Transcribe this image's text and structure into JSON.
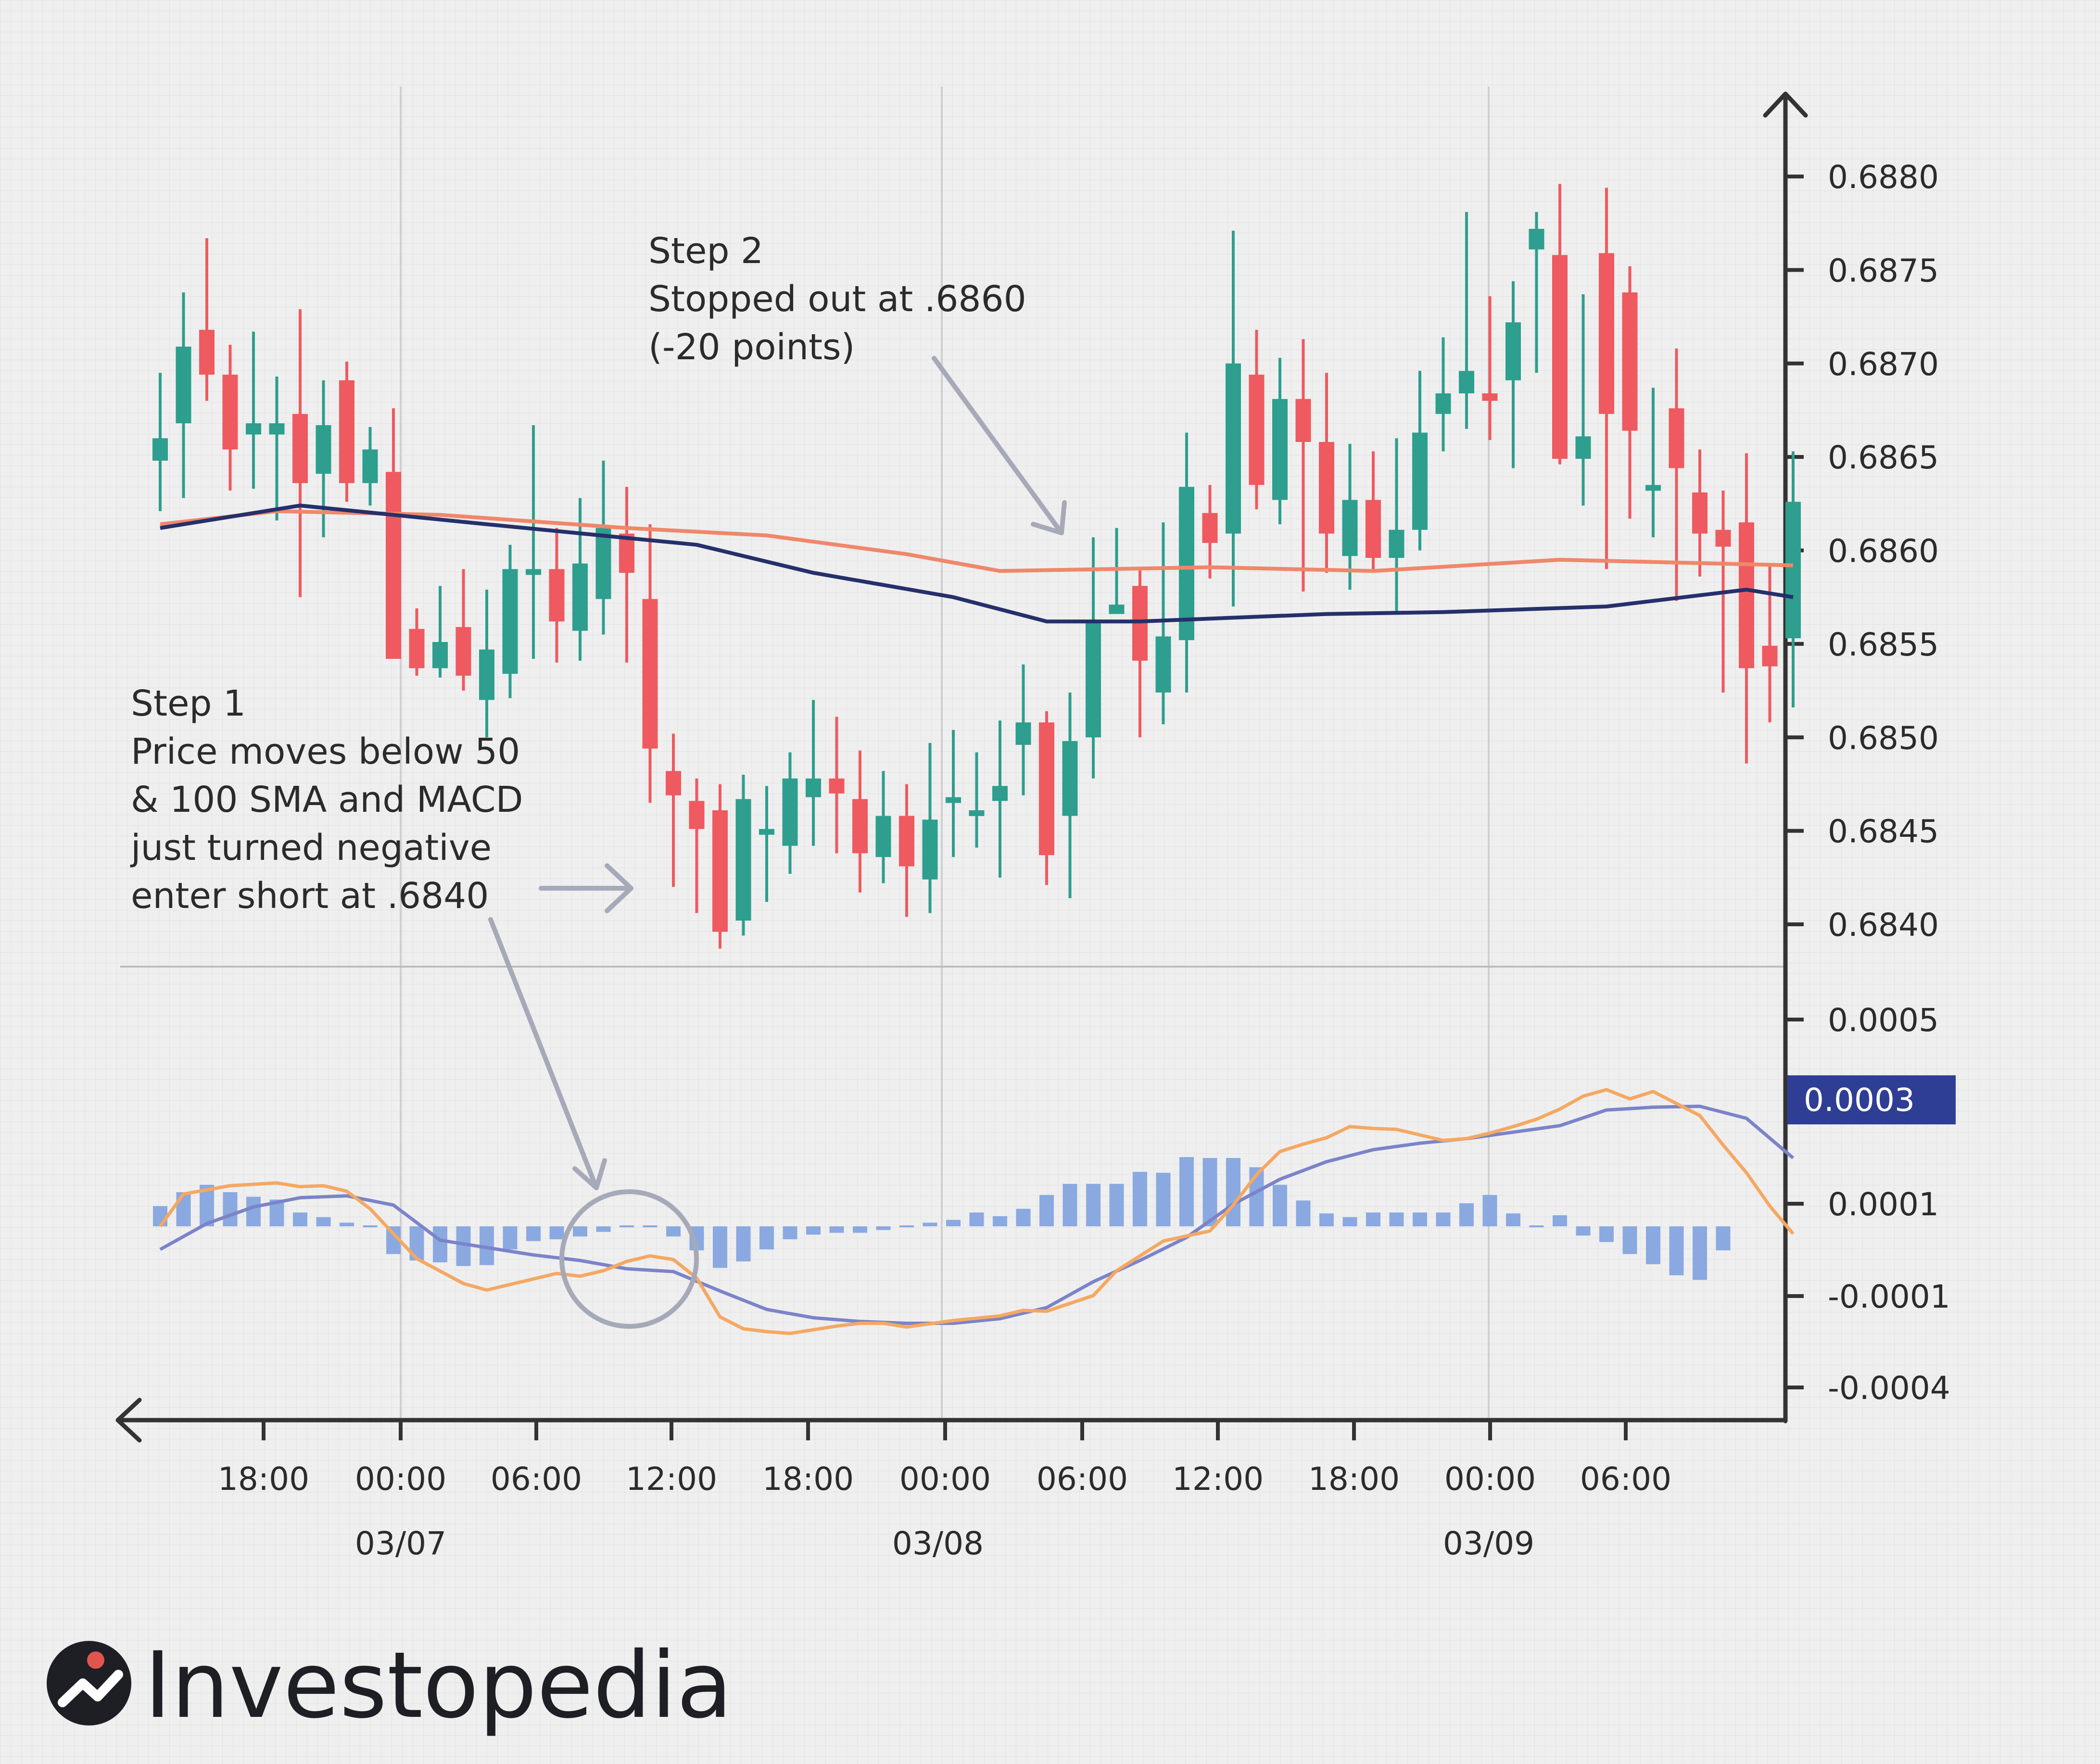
{
  "chart_data": {
    "type": "candlestick",
    "colors": {
      "up": "#2e9e8e",
      "down": "#ee5a5f",
      "sma50": "#f0876a",
      "sma100": "#25306b",
      "macd_line": "#f5a862",
      "signal_line": "#7b83c9",
      "histogram": "#8aa9e0",
      "badge": "#2f3e95",
      "annotation_arrow": "#a6a9b8",
      "axis": "#333333"
    },
    "x_axis": {
      "tick_labels": [
        "18:00",
        "00:00",
        "06:00",
        "12:00",
        "18:00",
        "00:00",
        "06:00",
        "12:00",
        "18:00",
        "00:00",
        "06:00"
      ],
      "date_labels": [
        "03/07",
        "03/08",
        "03/09"
      ]
    },
    "price_panel": {
      "y_ticks": [
        "0.6880",
        "0.6875",
        "0.6870",
        "0.6865",
        "0.6860",
        "0.6855",
        "0.6850",
        "0.6845",
        "0.6840"
      ],
      "ylim": [
        0.68375,
        0.68885
      ],
      "candles": [
        {
          "o": 0.68648,
          "h": 0.68695,
          "l": 0.68621,
          "c": 0.6866
        },
        {
          "o": 0.68668,
          "h": 0.68738,
          "l": 0.68628,
          "c": 0.68709
        },
        {
          "o": 0.68718,
          "h": 0.68767,
          "l": 0.6868,
          "c": 0.68694
        },
        {
          "o": 0.68694,
          "h": 0.6871,
          "l": 0.68632,
          "c": 0.68654
        },
        {
          "o": 0.68662,
          "h": 0.68717,
          "l": 0.68633,
          "c": 0.68668
        },
        {
          "o": 0.68662,
          "h": 0.68693,
          "l": 0.68616,
          "c": 0.68668
        },
        {
          "o": 0.68673,
          "h": 0.68729,
          "l": 0.68575,
          "c": 0.68636
        },
        {
          "o": 0.68641,
          "h": 0.68691,
          "l": 0.68607,
          "c": 0.68667
        },
        {
          "o": 0.68691,
          "h": 0.68701,
          "l": 0.68626,
          "c": 0.68636
        },
        {
          "o": 0.68636,
          "h": 0.68666,
          "l": 0.68624,
          "c": 0.68654
        },
        {
          "o": 0.68642,
          "h": 0.68676,
          "l": 0.68545,
          "c": 0.68542
        },
        {
          "o": 0.68558,
          "h": 0.68569,
          "l": 0.68533,
          "c": 0.68537
        },
        {
          "o": 0.68537,
          "h": 0.68581,
          "l": 0.68532,
          "c": 0.68551
        },
        {
          "o": 0.68559,
          "h": 0.6859,
          "l": 0.68525,
          "c": 0.68533
        },
        {
          "o": 0.6852,
          "h": 0.68579,
          "l": 0.685,
          "c": 0.68547
        },
        {
          "o": 0.68534,
          "h": 0.68603,
          "l": 0.68521,
          "c": 0.6859
        },
        {
          "o": 0.6859,
          "h": 0.68667,
          "l": 0.68542,
          "c": 0.6859
        },
        {
          "o": 0.6859,
          "h": 0.68612,
          "l": 0.6854,
          "c": 0.68562
        },
        {
          "o": 0.68557,
          "h": 0.68628,
          "l": 0.68541,
          "c": 0.68593
        },
        {
          "o": 0.68574,
          "h": 0.68648,
          "l": 0.68555,
          "c": 0.68612
        },
        {
          "o": 0.68609,
          "h": 0.68634,
          "l": 0.6854,
          "c": 0.68588
        },
        {
          "o": 0.68574,
          "h": 0.68614,
          "l": 0.68465,
          "c": 0.68494
        },
        {
          "o": 0.68482,
          "h": 0.68502,
          "l": 0.6842,
          "c": 0.68469
        },
        {
          "o": 0.68466,
          "h": 0.68478,
          "l": 0.68406,
          "c": 0.68451
        },
        {
          "o": 0.68461,
          "h": 0.68475,
          "l": 0.68387,
          "c": 0.68396
        },
        {
          "o": 0.68402,
          "h": 0.6848,
          "l": 0.68394,
          "c": 0.68467
        },
        {
          "o": 0.68451,
          "h": 0.68474,
          "l": 0.68412,
          "c": 0.68451
        },
        {
          "o": 0.68442,
          "h": 0.68492,
          "l": 0.68427,
          "c": 0.68478
        },
        {
          "o": 0.68468,
          "h": 0.6852,
          "l": 0.68442,
          "c": 0.68478
        },
        {
          "o": 0.68478,
          "h": 0.68511,
          "l": 0.68438,
          "c": 0.6847
        },
        {
          "o": 0.68467,
          "h": 0.68493,
          "l": 0.68417,
          "c": 0.68438
        },
        {
          "o": 0.68436,
          "h": 0.68482,
          "l": 0.68422,
          "c": 0.68458
        },
        {
          "o": 0.68458,
          "h": 0.68475,
          "l": 0.68404,
          "c": 0.68431
        },
        {
          "o": 0.68424,
          "h": 0.68497,
          "l": 0.68406,
          "c": 0.68456
        },
        {
          "o": 0.68468,
          "h": 0.68504,
          "l": 0.68436,
          "c": 0.68468
        },
        {
          "o": 0.68461,
          "h": 0.68492,
          "l": 0.68441,
          "c": 0.68461
        },
        {
          "o": 0.68466,
          "h": 0.68509,
          "l": 0.68425,
          "c": 0.68474
        },
        {
          "o": 0.68496,
          "h": 0.68539,
          "l": 0.68469,
          "c": 0.68508
        },
        {
          "o": 0.68508,
          "h": 0.68514,
          "l": 0.68421,
          "c": 0.68437
        },
        {
          "o": 0.68458,
          "h": 0.68524,
          "l": 0.68414,
          "c": 0.68498
        },
        {
          "o": 0.685,
          "h": 0.68607,
          "l": 0.68478,
          "c": 0.68561
        },
        {
          "o": 0.68566,
          "h": 0.68612,
          "l": 0.68568,
          "c": 0.68571
        },
        {
          "o": 0.68581,
          "h": 0.6859,
          "l": 0.685,
          "c": 0.68541
        },
        {
          "o": 0.68524,
          "h": 0.68615,
          "l": 0.68507,
          "c": 0.68554
        },
        {
          "o": 0.68552,
          "h": 0.68663,
          "l": 0.68524,
          "c": 0.68634
        },
        {
          "o": 0.6862,
          "h": 0.68635,
          "l": 0.68585,
          "c": 0.68604
        },
        {
          "o": 0.68609,
          "h": 0.68771,
          "l": 0.6857,
          "c": 0.687
        },
        {
          "o": 0.68694,
          "h": 0.68718,
          "l": 0.68622,
          "c": 0.68635
        },
        {
          "o": 0.68627,
          "h": 0.68703,
          "l": 0.68614,
          "c": 0.68681
        },
        {
          "o": 0.68681,
          "h": 0.68713,
          "l": 0.68578,
          "c": 0.68658
        },
        {
          "o": 0.68658,
          "h": 0.68695,
          "l": 0.68588,
          "c": 0.68609
        },
        {
          "o": 0.68597,
          "h": 0.68657,
          "l": 0.68579,
          "c": 0.68627
        },
        {
          "o": 0.68627,
          "h": 0.68653,
          "l": 0.68588,
          "c": 0.68596
        },
        {
          "o": 0.68596,
          "h": 0.6866,
          "l": 0.68566,
          "c": 0.68611
        },
        {
          "o": 0.68611,
          "h": 0.68696,
          "l": 0.686,
          "c": 0.68663
        },
        {
          "o": 0.68673,
          "h": 0.68714,
          "l": 0.68653,
          "c": 0.68684
        },
        {
          "o": 0.68684,
          "h": 0.68781,
          "l": 0.68665,
          "c": 0.68696
        },
        {
          "o": 0.68684,
          "h": 0.68736,
          "l": 0.68659,
          "c": 0.6868
        },
        {
          "o": 0.68691,
          "h": 0.68744,
          "l": 0.68644,
          "c": 0.68722
        },
        {
          "o": 0.68761,
          "h": 0.68781,
          "l": 0.68695,
          "c": 0.68772
        },
        {
          "o": 0.68758,
          "h": 0.68796,
          "l": 0.68646,
          "c": 0.68649
        },
        {
          "o": 0.68649,
          "h": 0.68737,
          "l": 0.68624,
          "c": 0.68661
        },
        {
          "o": 0.68759,
          "h": 0.68794,
          "l": 0.6859,
          "c": 0.68673
        },
        {
          "o": 0.68738,
          "h": 0.68752,
          "l": 0.68617,
          "c": 0.68664
        },
        {
          "o": 0.68635,
          "h": 0.68687,
          "l": 0.68607,
          "c": 0.68635
        },
        {
          "o": 0.68676,
          "h": 0.68708,
          "l": 0.68573,
          "c": 0.68644
        },
        {
          "o": 0.68631,
          "h": 0.68654,
          "l": 0.68586,
          "c": 0.68609
        },
        {
          "o": 0.68611,
          "h": 0.68632,
          "l": 0.68524,
          "c": 0.68602
        },
        {
          "o": 0.68615,
          "h": 0.68652,
          "l": 0.68486,
          "c": 0.68537
        },
        {
          "o": 0.68549,
          "h": 0.68592,
          "l": 0.68508,
          "c": 0.68538
        },
        {
          "o": 0.68553,
          "h": 0.68653,
          "l": 0.68516,
          "c": 0.68626
        }
      ],
      "sma50": [
        [
          0,
          0.68614
        ],
        [
          5,
          0.68621
        ],
        [
          12,
          0.68619
        ],
        [
          20,
          0.68612
        ],
        [
          26,
          0.68608
        ],
        [
          32,
          0.68598
        ],
        [
          36,
          0.68589
        ],
        [
          45,
          0.68591
        ],
        [
          52,
          0.68589
        ],
        [
          60,
          0.68595
        ],
        [
          70,
          0.68592
        ]
      ],
      "sma100": [
        [
          0,
          0.68612
        ],
        [
          6,
          0.68624
        ],
        [
          14,
          0.68614
        ],
        [
          23,
          0.68603
        ],
        [
          28,
          0.68588
        ],
        [
          34,
          0.68575
        ],
        [
          38,
          0.68562
        ],
        [
          42,
          0.68562
        ],
        [
          50,
          0.68566
        ],
        [
          55,
          0.68567
        ],
        [
          62,
          0.6857
        ],
        [
          68,
          0.68579
        ],
        [
          70,
          0.68575
        ]
      ]
    },
    "macd_panel": {
      "y_ticks": [
        "0.0005",
        "0.0001",
        "-0.0001",
        "-0.0004"
      ],
      "badge_value": "0.0003",
      "histogram": [
        0.22,
        0.37,
        0.45,
        0.37,
        0.32,
        0.29,
        0.15,
        0.1,
        0.04,
        0,
        -0.3,
        -0.37,
        -0.39,
        -0.43,
        -0.42,
        -0.25,
        -0.16,
        -0.14,
        -0.11,
        -0.06,
        0,
        0,
        -0.11,
        -0.26,
        -0.45,
        -0.38,
        -0.25,
        -0.14,
        -0.09,
        -0.07,
        -0.07,
        -0.04,
        0,
        0.04,
        0.07,
        0.15,
        0.11,
        0.19,
        0.34,
        0.46,
        0.46,
        0.46,
        0.59,
        0.58,
        0.75,
        0.74,
        0.74,
        0.64,
        0.45,
        0.28,
        0.14,
        0.1,
        0.15,
        0.15,
        0.15,
        0.15,
        0.25,
        0.34,
        0.14,
        0,
        0.12,
        -0.1,
        -0.17,
        -0.3,
        -0.41,
        -0.53,
        -0.58,
        -0.26
      ],
      "macd_line": [
        [
          0,
          0.0
        ],
        [
          1,
          0.35
        ],
        [
          3,
          0.44
        ],
        [
          5,
          0.47
        ],
        [
          6,
          0.43
        ],
        [
          7,
          0.44
        ],
        [
          8,
          0.38
        ],
        [
          9,
          0.19
        ],
        [
          11,
          -0.35
        ],
        [
          13,
          -0.62
        ],
        [
          14,
          -0.69
        ],
        [
          16,
          -0.57
        ],
        [
          17,
          -0.51
        ],
        [
          18,
          -0.54
        ],
        [
          19,
          -0.48
        ],
        [
          20,
          -0.38
        ],
        [
          21,
          -0.32
        ],
        [
          22,
          -0.36
        ],
        [
          23,
          -0.56
        ],
        [
          24,
          -0.98
        ],
        [
          25,
          -1.11
        ],
        [
          26,
          -1.14
        ],
        [
          27,
          -1.16
        ],
        [
          29,
          -1.08
        ],
        [
          30,
          -1.05
        ],
        [
          31,
          -1.05
        ],
        [
          32,
          -1.09
        ],
        [
          34,
          -1.02
        ],
        [
          36,
          -0.97
        ],
        [
          37,
          -0.91
        ],
        [
          38,
          -0.92
        ],
        [
          40,
          -0.75
        ],
        [
          41,
          -0.48
        ],
        [
          43,
          -0.16
        ],
        [
          45,
          -0.05
        ],
        [
          46,
          0.23
        ],
        [
          47,
          0.56
        ],
        [
          48,
          0.81
        ],
        [
          49,
          0.89
        ],
        [
          50,
          0.96
        ],
        [
          51,
          1.08
        ],
        [
          52,
          1.06
        ],
        [
          53,
          1.05
        ],
        [
          55,
          0.93
        ],
        [
          56,
          0.95
        ],
        [
          57,
          1.01
        ],
        [
          58,
          1.08
        ],
        [
          59,
          1.16
        ],
        [
          60,
          1.27
        ],
        [
          61,
          1.41
        ],
        [
          62,
          1.48
        ],
        [
          63,
          1.38
        ],
        [
          64,
          1.46
        ],
        [
          65,
          1.33
        ],
        [
          66,
          1.2
        ],
        [
          67,
          0.88
        ],
        [
          68,
          0.58
        ],
        [
          69,
          0.22
        ],
        [
          70,
          -0.08
        ]
      ],
      "signal_line": [
        [
          0,
          -0.25
        ],
        [
          2,
          0.03
        ],
        [
          4,
          0.21
        ],
        [
          6,
          0.31
        ],
        [
          8,
          0.33
        ],
        [
          10,
          0.23
        ],
        [
          12,
          -0.15
        ],
        [
          14,
          -0.23
        ],
        [
          16,
          -0.31
        ],
        [
          18,
          -0.37
        ],
        [
          20,
          -0.46
        ],
        [
          22,
          -0.49
        ],
        [
          24,
          -0.7
        ],
        [
          26,
          -0.9
        ],
        [
          28,
          -0.99
        ],
        [
          30,
          -1.03
        ],
        [
          32,
          -1.05
        ],
        [
          34,
          -1.05
        ],
        [
          36,
          -1.0
        ],
        [
          38,
          -0.88
        ],
        [
          40,
          -0.6
        ],
        [
          42,
          -0.37
        ],
        [
          44,
          -0.12
        ],
        [
          46,
          0.24
        ],
        [
          48,
          0.51
        ],
        [
          50,
          0.7
        ],
        [
          52,
          0.83
        ],
        [
          54,
          0.9
        ],
        [
          56,
          0.95
        ],
        [
          58,
          1.02
        ],
        [
          60,
          1.09
        ],
        [
          62,
          1.26
        ],
        [
          64,
          1.29
        ],
        [
          66,
          1.3
        ],
        [
          68,
          1.17
        ],
        [
          70,
          0.74
        ]
      ],
      "ylim": [
        -1.45,
        1.78
      ]
    },
    "annotations": {
      "step1": {
        "title": "Step 1",
        "lines": [
          "Price moves below 50",
          "& 100 SMA and MACD",
          "just turned negative",
          "enter short at .6840"
        ]
      },
      "step2": {
        "title": "Step 2",
        "lines": [
          "Stopped out at .6860",
          "(-20 points)"
        ]
      }
    }
  },
  "branding": {
    "logo_text": "Investopedia",
    "logo_icon": "investopedia-logo-icon"
  }
}
